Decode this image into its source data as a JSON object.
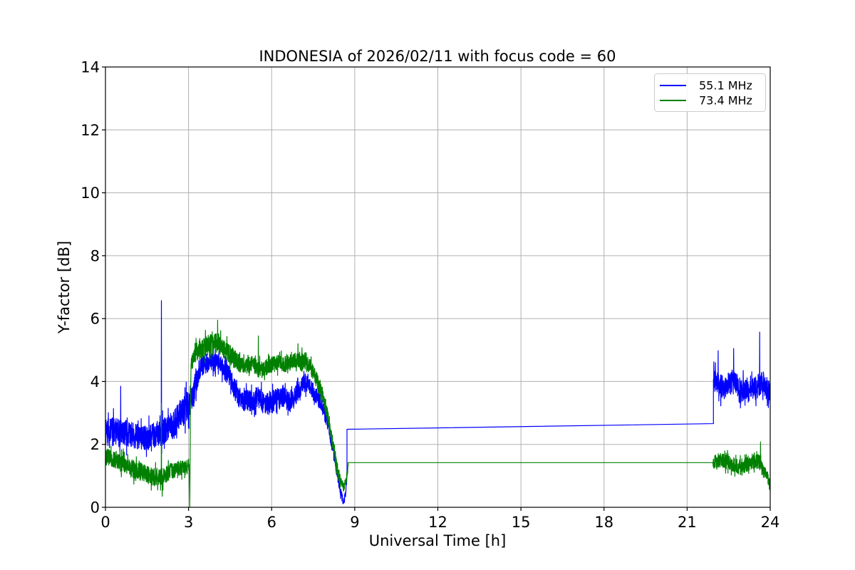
{
  "chart_data": {
    "type": "line",
    "title": "INDONESIA of 2026/02/11 with focus code = 60",
    "xlabel": "Universal Time [h]",
    "ylabel": "Y-factor [dB]",
    "xlim": [
      0,
      24
    ],
    "ylim": [
      0,
      14
    ],
    "xticks": [
      0,
      3,
      6,
      9,
      12,
      15,
      18,
      21,
      24
    ],
    "yticks": [
      0,
      2,
      4,
      6,
      8,
      10,
      12,
      14
    ],
    "grid": true,
    "grid_color": "#b0b0b0",
    "legend": {
      "position": "upper right",
      "frame_color": "#cccccc"
    },
    "series": [
      {
        "name": "55.1 MHz",
        "color": "#0000ff",
        "segments": [
          {
            "kind": "noisy",
            "range": [
              0.0,
              8.72
            ],
            "center": [
              [
                0,
                2.35
              ],
              [
                0.3,
                2.45
              ],
              [
                0.6,
                2.4
              ],
              [
                0.9,
                2.3
              ],
              [
                1.2,
                2.25
              ],
              [
                1.5,
                2.2
              ],
              [
                1.8,
                2.35
              ],
              [
                2.1,
                2.4
              ],
              [
                2.4,
                2.6
              ],
              [
                2.7,
                2.9
              ],
              [
                3.0,
                3.3
              ],
              [
                3.2,
                3.7
              ],
              [
                3.4,
                4.4
              ],
              [
                3.6,
                4.55
              ],
              [
                3.8,
                4.65
              ],
              [
                4.0,
                4.6
              ],
              [
                4.2,
                4.5
              ],
              [
                4.5,
                4.1
              ],
              [
                4.8,
                3.5
              ],
              [
                5.0,
                3.35
              ],
              [
                5.2,
                3.4
              ],
              [
                5.5,
                3.5
              ],
              [
                5.8,
                3.25
              ],
              [
                6.1,
                3.4
              ],
              [
                6.4,
                3.55
              ],
              [
                6.7,
                3.3
              ],
              [
                7.0,
                3.75
              ],
              [
                7.2,
                3.95
              ],
              [
                7.4,
                3.8
              ],
              [
                7.6,
                3.55
              ],
              [
                7.8,
                3.3
              ],
              [
                8.0,
                2.75
              ],
              [
                8.2,
                1.9
              ],
              [
                8.35,
                1.2
              ],
              [
                8.5,
                0.45
              ],
              [
                8.6,
                0.15
              ],
              [
                8.68,
                0.5
              ],
              [
                8.72,
                1.0
              ]
            ],
            "amp": [
              [
                0,
                0.42
              ],
              [
                1.5,
                0.4
              ],
              [
                2.5,
                0.45
              ],
              [
                3.0,
                0.5
              ],
              [
                3.5,
                0.3
              ],
              [
                4.0,
                0.3
              ],
              [
                5.0,
                0.35
              ],
              [
                6.0,
                0.35
              ],
              [
                7.0,
                0.3
              ],
              [
                7.8,
                0.25
              ],
              [
                8.3,
                0.22
              ],
              [
                8.6,
                0.12
              ],
              [
                8.72,
                0.1
              ]
            ],
            "spikes": [
              [
                0.55,
                3.85
              ],
              [
                2.02,
                6.57
              ]
            ]
          },
          {
            "kind": "line",
            "points": [
              [
                8.72,
                2.48
              ],
              [
                21.95,
                2.66
              ]
            ]
          },
          {
            "kind": "noisy",
            "range": [
              21.95,
              24.0
            ],
            "center": [
              [
                21.95,
                4.1
              ],
              [
                22.1,
                3.95
              ],
              [
                22.3,
                3.8
              ],
              [
                22.5,
                3.9
              ],
              [
                22.7,
                4.05
              ],
              [
                22.9,
                3.65
              ],
              [
                23.1,
                3.75
              ],
              [
                23.3,
                3.7
              ],
              [
                23.5,
                3.8
              ],
              [
                23.7,
                3.95
              ],
              [
                23.85,
                3.9
              ],
              [
                24,
                3.55
              ]
            ],
            "amp": [
              [
                21.95,
                0.38
              ],
              [
                24,
                0.38
              ]
            ],
            "spikes": [
              [
                22.12,
                4.98
              ],
              [
                22.68,
                5.05
              ],
              [
                23.62,
                5.57
              ]
            ]
          }
        ]
      },
      {
        "name": "73.4 MHz",
        "color": "#008000",
        "segments": [
          {
            "kind": "noisy",
            "range": [
              0.0,
              3.02
            ],
            "center": [
              [
                0,
                1.6
              ],
              [
                0.3,
                1.55
              ],
              [
                0.6,
                1.4
              ],
              [
                0.9,
                1.25
              ],
              [
                1.2,
                1.15
              ],
              [
                1.5,
                1.05
              ],
              [
                1.8,
                0.95
              ],
              [
                2.1,
                1.0
              ],
              [
                2.4,
                1.15
              ],
              [
                2.7,
                1.25
              ],
              [
                3.02,
                1.3
              ]
            ],
            "amp": [
              [
                0,
                0.28
              ],
              [
                1.0,
                0.3
              ],
              [
                2.0,
                0.28
              ],
              [
                3.02,
                0.25
              ]
            ],
            "spikes": [
              [
                2.02,
                3.3
              ],
              [
                2.05,
                0.35
              ]
            ]
          },
          {
            "kind": "line",
            "points": [
              [
                3.02,
                1.28
              ],
              [
                3.045,
                0.02
              ],
              [
                3.07,
                3.2
              ],
              [
                3.09,
                4.55
              ]
            ]
          },
          {
            "kind": "noisy",
            "range": [
              3.09,
              8.76
            ],
            "center": [
              [
                3.09,
                4.55
              ],
              [
                3.3,
                4.95
              ],
              [
                3.6,
                5.1
              ],
              [
                3.9,
                5.25
              ],
              [
                4.1,
                5.2
              ],
              [
                4.4,
                4.95
              ],
              [
                4.7,
                4.7
              ],
              [
                5.0,
                4.45
              ],
              [
                5.3,
                4.55
              ],
              [
                5.6,
                4.35
              ],
              [
                5.9,
                4.5
              ],
              [
                6.2,
                4.6
              ],
              [
                6.5,
                4.55
              ],
              [
                6.8,
                4.65
              ],
              [
                7.0,
                4.7
              ],
              [
                7.2,
                4.6
              ],
              [
                7.4,
                4.45
              ],
              [
                7.6,
                4.1
              ],
              [
                7.8,
                3.7
              ],
              [
                8.0,
                3.0
              ],
              [
                8.2,
                2.05
              ],
              [
                8.35,
                1.3
              ],
              [
                8.5,
                0.8
              ],
              [
                8.6,
                0.65
              ],
              [
                8.7,
                0.9
              ],
              [
                8.76,
                1.3
              ]
            ],
            "amp": [
              [
                3.09,
                0.3
              ],
              [
                4.0,
                0.32
              ],
              [
                5.0,
                0.28
              ],
              [
                6.0,
                0.25
              ],
              [
                7.0,
                0.25
              ],
              [
                7.8,
                0.25
              ],
              [
                8.4,
                0.18
              ],
              [
                8.76,
                0.12
              ]
            ],
            "spikes": [
              [
                4.05,
                5.95
              ],
              [
                5.52,
                5.45
              ],
              [
                6.95,
                5.2
              ]
            ]
          },
          {
            "kind": "line",
            "points": [
              [
                8.76,
                1.42
              ],
              [
                21.93,
                1.42
              ]
            ]
          },
          {
            "kind": "noisy",
            "range": [
              21.93,
              24.0
            ],
            "center": [
              [
                21.93,
                1.45
              ],
              [
                22.2,
                1.5
              ],
              [
                22.4,
                1.45
              ],
              [
                22.6,
                1.4
              ],
              [
                22.8,
                1.3
              ],
              [
                23.0,
                1.25
              ],
              [
                23.2,
                1.4
              ],
              [
                23.45,
                1.5
              ],
              [
                23.6,
                1.45
              ],
              [
                23.75,
                1.15
              ],
              [
                23.9,
                1.0
              ],
              [
                24,
                0.65
              ]
            ],
            "amp": [
              [
                21.93,
                0.22
              ],
              [
                23.5,
                0.25
              ],
              [
                24,
                0.18
              ]
            ],
            "spikes": [
              [
                23.65,
                2.08
              ]
            ]
          }
        ]
      }
    ]
  }
}
